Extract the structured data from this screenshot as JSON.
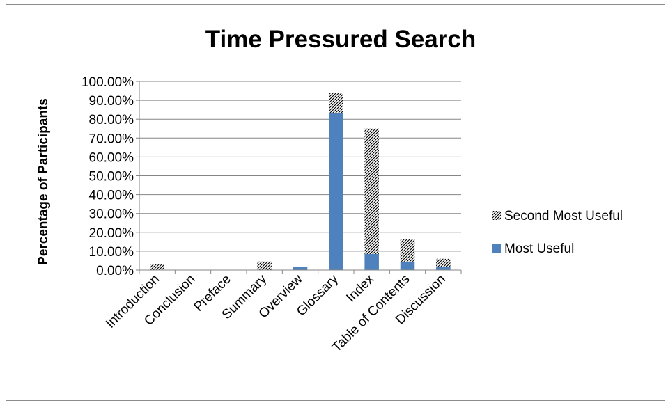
{
  "chart_data": {
    "type": "bar",
    "stacked": true,
    "title": "Time Pressured Search",
    "ylabel": "Percentage of Participants",
    "xlabel": "",
    "ylim": [
      0,
      100
    ],
    "y_ticks": [
      "0.00%",
      "10.00%",
      "20.00%",
      "30.00%",
      "40.00%",
      "50.00%",
      "60.00%",
      "70.00%",
      "80.00%",
      "90.00%",
      "100.00%"
    ],
    "categories": [
      "Introduction",
      "Conclusion",
      "Preface",
      "Summary",
      "Overview",
      "Glossary",
      "Index",
      "Table of Contents",
      "Discussion"
    ],
    "series": [
      {
        "name": "Most Useful",
        "color": "#4f81bd",
        "pattern": "solid",
        "values": [
          0,
          0,
          0,
          0,
          1.5,
          83.3,
          8.5,
          4.5,
          1.5
        ]
      },
      {
        "name": "Second Most Useful",
        "color": "#000000",
        "pattern": "diagonal-hatch",
        "values": [
          3.0,
          0,
          0,
          4.5,
          0,
          10.5,
          66.5,
          12.0,
          4.5
        ]
      }
    ],
    "legend": [
      "Second Most Useful",
      "Most Useful"
    ],
    "legend_position": "right",
    "grid": true
  }
}
